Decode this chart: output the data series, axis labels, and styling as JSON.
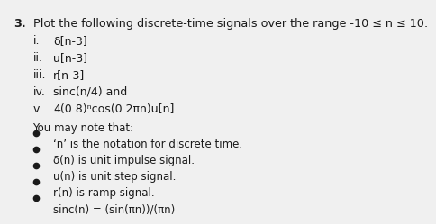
{
  "title_number": "3.",
  "title_text": "Plot the following discrete-time signals over the range -10 ≤ n ≤ 10:",
  "items": [
    {
      "label": "i.",
      "text": "δ[n-3]"
    },
    {
      "label": "ii.",
      "text": "u[n-3]"
    },
    {
      "label": "iii.",
      "text": "r[n-3]"
    },
    {
      "label": "iv.",
      "text": "sinc(n/4) and"
    },
    {
      "label": "v.",
      "text": "4(0.8)ⁿcos(0.2πn)u[n]"
    }
  ],
  "note_header": "You may note that:",
  "note_items": [
    "‘n’ is the notation for discrete time.",
    "δ(n) is unit impulse signal.",
    "u(n) is unit step signal.",
    "r(n) is ramp signal.",
    "sinc(n) = (sin(πn))/(πn)"
  ],
  "background_color": "#f0f0f0",
  "text_color": "#1a1a1a",
  "font_size_title": 9.2,
  "font_size_body": 9.0,
  "font_size_note": 8.5
}
